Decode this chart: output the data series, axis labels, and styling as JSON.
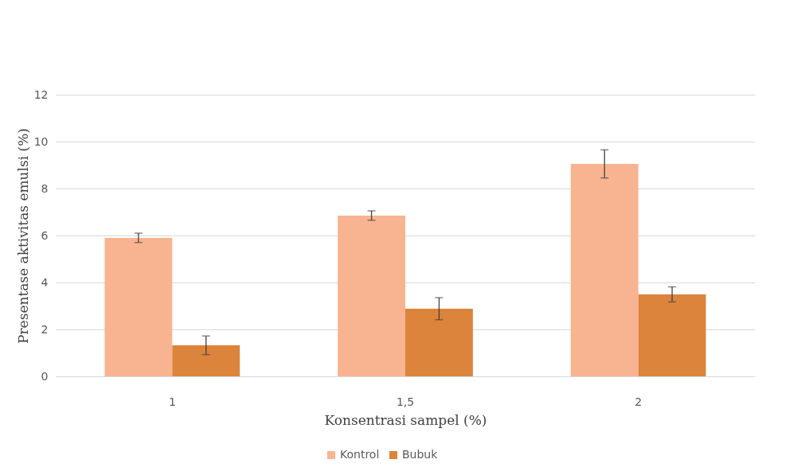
{
  "chart_data": {
    "type": "bar",
    "xlabel": "Konsentrasi  sampel (%)",
    "ylabel": "Presentase aktivitas emulsi (%)",
    "categories": [
      "1",
      "1,5",
      "2"
    ],
    "series": [
      {
        "name": "Kontrol",
        "color": "#f8b490",
        "values": [
          5.9,
          6.85,
          9.05
        ],
        "errors": [
          0.2,
          0.2,
          0.6
        ]
      },
      {
        "name": "Bubuk",
        "color": "#dc843c",
        "values": [
          1.32,
          2.88,
          3.49
        ],
        "errors": [
          0.4,
          0.47,
          0.32
        ]
      }
    ],
    "ylim": [
      0,
      12
    ],
    "yticks": [
      0,
      2,
      4,
      6,
      8,
      10,
      12
    ],
    "grid": "y",
    "legend": "bottom"
  }
}
